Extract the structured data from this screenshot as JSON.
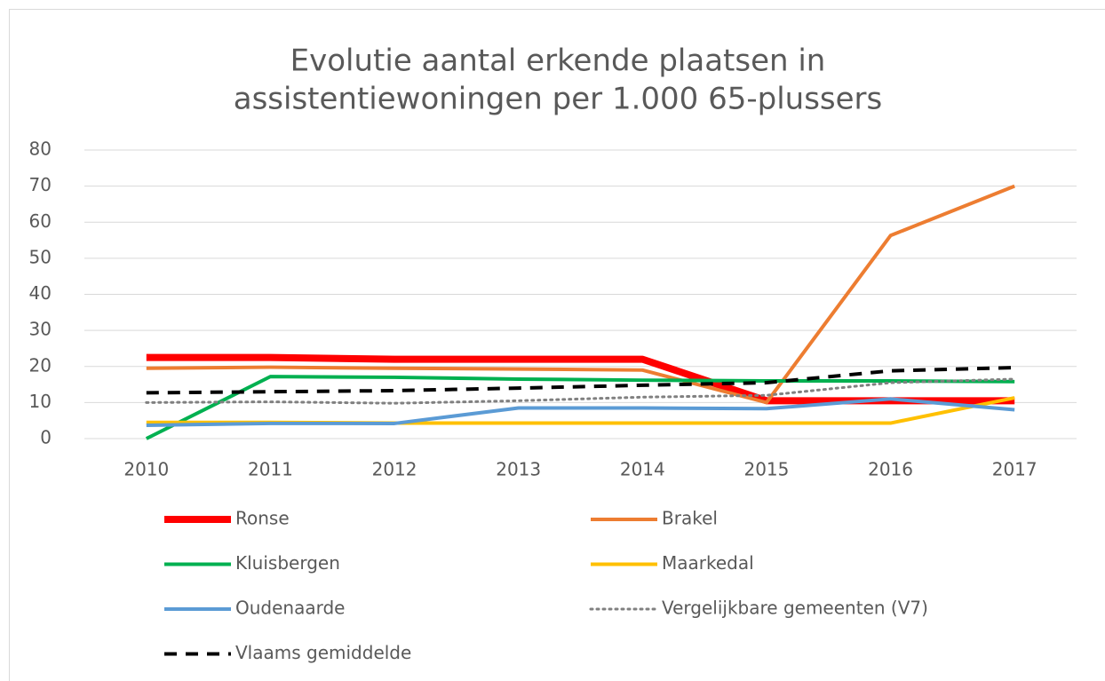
{
  "chart_data": {
    "type": "line",
    "title": [
      "Evolutie aantal erkende plaatsen in",
      "assistentiewoningen per 1.000 65-plussers"
    ],
    "categories": [
      "2010",
      "2011",
      "2012",
      "2013",
      "2014",
      "2015",
      "2016",
      "2017"
    ],
    "ylim": [
      0,
      80
    ],
    "yticks": [
      0,
      10,
      20,
      30,
      40,
      50,
      60,
      70,
      80
    ],
    "grid": true,
    "legend": "bottom",
    "series": [
      {
        "name": "Ronse",
        "color": "#ff0000",
        "values": [
          22.5,
          22.5,
          22,
          22,
          22,
          10.5,
          10.5,
          10.5
        ]
      },
      {
        "name": "Brakel",
        "color": "#ed7d31",
        "values": [
          19.5,
          19.8,
          19.5,
          19.3,
          19,
          10,
          56.3,
          70
        ]
      },
      {
        "name": "Kluisbergen",
        "color": "#00b050",
        "values": [
          0,
          17.2,
          17,
          16.5,
          16.2,
          16,
          16,
          15.8
        ]
      },
      {
        "name": "Maarkedal",
        "color": "#ffc000",
        "values": [
          4.5,
          4.5,
          4.3,
          4.3,
          4.3,
          4.3,
          4.3,
          11.3
        ]
      },
      {
        "name": "Oudenaarde",
        "color": "#5b9bd5",
        "values": [
          3.7,
          4.2,
          4.2,
          8.5,
          8.5,
          8.3,
          11,
          8
        ]
      },
      {
        "name": "Vergelijkbare gemeenten (V7)",
        "color": "#808080",
        "values": [
          10,
          10.2,
          9.8,
          10.5,
          11.5,
          12,
          15.5,
          16.5
        ]
      },
      {
        "name": "Vlaams gemiddelde",
        "color": "#000000",
        "values": [
          12.7,
          13,
          13.3,
          14,
          14.8,
          15.5,
          18.8,
          19.7
        ]
      }
    ]
  }
}
